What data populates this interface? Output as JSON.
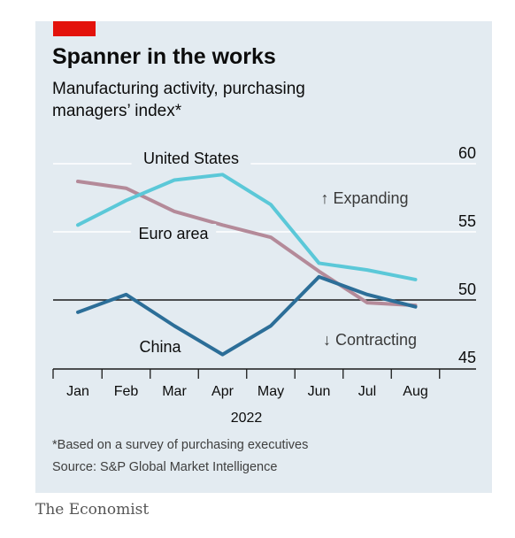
{
  "header": {
    "title": "Spanner in the works",
    "subtitle": "Manufacturing activity, purchasing managers’ index*"
  },
  "footer": {
    "footnote": "*Based on a survey of purchasing executives",
    "source": "Source: S&P Global Market Intelligence",
    "brand": "The Economist"
  },
  "colors": {
    "accent": "#e3120b",
    "background": "#e3ebf1",
    "united_states": "#5bc8d8",
    "euro_area": "#b48a99",
    "china": "#2c6e98"
  },
  "chart_data": {
    "type": "line",
    "title": "Spanner in the works",
    "subtitle": "Manufacturing activity, purchasing managers’ index*",
    "x": [
      "Jan",
      "Feb",
      "Mar",
      "Apr",
      "May",
      "Jun",
      "Jul",
      "Aug"
    ],
    "xlabel": "2022",
    "ylabel": "",
    "ylim": [
      45,
      60
    ],
    "yticks": [
      45,
      50,
      55,
      60
    ],
    "y_axis_side": "right",
    "grid": true,
    "reference_line": 50,
    "series": [
      {
        "name": "United States",
        "color": "#5bc8d8",
        "values": [
          55.5,
          57.3,
          58.8,
          59.2,
          57.0,
          52.7,
          52.2,
          51.5
        ]
      },
      {
        "name": "Euro area",
        "color": "#b48a99",
        "values": [
          58.7,
          58.2,
          56.5,
          55.5,
          54.6,
          52.1,
          49.8,
          49.6
        ]
      },
      {
        "name": "China",
        "color": "#2c6e98",
        "values": [
          49.1,
          50.4,
          48.1,
          46.0,
          48.1,
          51.7,
          50.4,
          49.5
        ]
      }
    ],
    "annotations": [
      "↑ Expanding",
      "↓ Contracting"
    ]
  }
}
